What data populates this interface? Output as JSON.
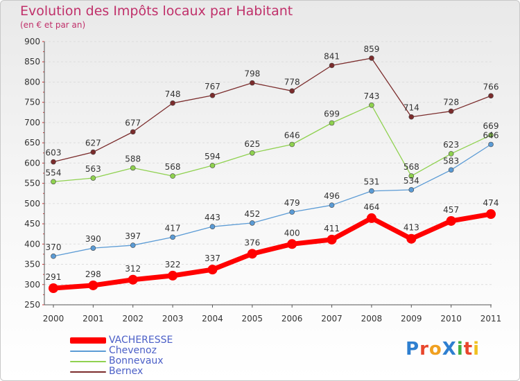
{
  "title": "Evolution des Impôts locaux par Habitant",
  "subtitle": "(en € et par an)",
  "logo_text": "ProXiti",
  "chart_data": {
    "type": "line",
    "x": [
      "2000",
      "2001",
      "2002",
      "2003",
      "2004",
      "2005",
      "2006",
      "2007",
      "2008",
      "2009",
      "2010",
      "2011"
    ],
    "ylim": [
      250,
      900
    ],
    "y_ticks": [
      250,
      300,
      350,
      400,
      450,
      500,
      550,
      600,
      650,
      700,
      750,
      800,
      850,
      900
    ],
    "grid": true,
    "legend_position": "bottom-left",
    "series": [
      {
        "name": "VACHERESSE",
        "color": "#ff0000",
        "values": [
          291,
          298,
          312,
          322,
          337,
          376,
          400,
          411,
          464,
          413,
          457,
          474
        ]
      },
      {
        "name": "Chevenoz",
        "color": "#5b9bd5",
        "values": [
          370,
          390,
          397,
          417,
          443,
          452,
          479,
          496,
          531,
          534,
          583,
          646
        ]
      },
      {
        "name": "Bonnevaux",
        "color": "#8fd14f",
        "values": [
          554,
          563,
          588,
          568,
          594,
          625,
          646,
          699,
          743,
          568,
          623,
          669
        ]
      },
      {
        "name": "Bernex",
        "color": "#7b2c2c",
        "values": [
          603,
          627,
          677,
          748,
          767,
          798,
          778,
          841,
          859,
          714,
          728,
          766
        ]
      }
    ]
  }
}
